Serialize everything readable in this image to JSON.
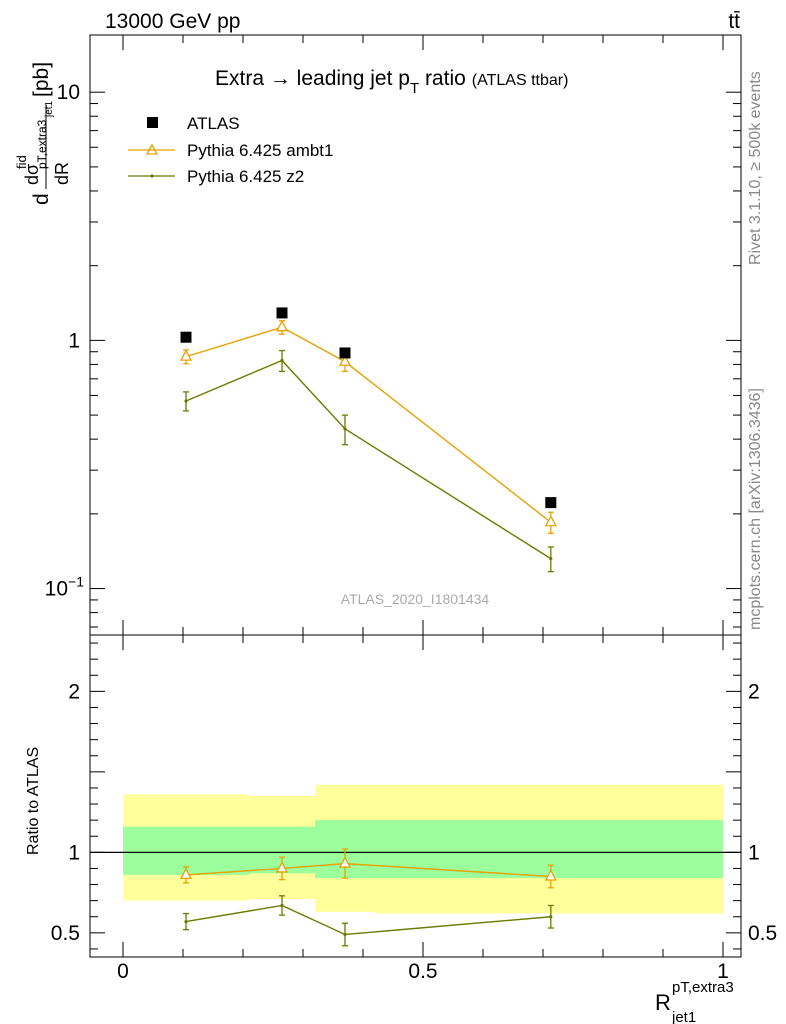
{
  "header": {
    "left": "13000 GeV pp",
    "right": "tt̄"
  },
  "title": {
    "main": "Extra → leading jet p",
    "sub": "T",
    "after": " ratio",
    "small": "(ATLAS ttbar)"
  },
  "side_labels": {
    "rivet": "Rivet 3.1.10, ≥ 500k events",
    "mcplots": "mcplots.cern.ch [arXiv:1306.3436]"
  },
  "analysis_label": "ATLAS_2020_I1801434",
  "y_axis_label": {
    "d": "d",
    "dsigma": "dσ",
    "fid": "fid",
    "psub": "pT,extra3",
    "jetsub": "jet1",
    "dR": "dR",
    "unit": "[pb]"
  },
  "x_axis_label": {
    "R": "R",
    "sup": "pT,extra3",
    "sub": "jet1"
  },
  "ratio_label": "Ratio to ATLAS",
  "legend": [
    {
      "label": "ATLAS"
    },
    {
      "label": "Pythia 6.425 ambt1"
    },
    {
      "label": "Pythia 6.425 z2"
    }
  ],
  "colors": {
    "atlas": "#000000",
    "ambt1": "#e8a000",
    "z2": "#6b7a00",
    "band_inner": "#9cff9c",
    "band_outer": "#ffff9c"
  },
  "chart_data": {
    "type": "scatter",
    "main": {
      "yscale": "log",
      "ylim": [
        0.065,
        17
      ],
      "y_ticks": [
        {
          "value": 0.1,
          "base": "10",
          "exp": "−1"
        },
        {
          "value": 1,
          "label": "1"
        },
        {
          "value": 10,
          "label": "10"
        }
      ],
      "series": [
        {
          "name": "ATLAS",
          "marker": "square",
          "points": [
            {
              "x": 0.105,
              "y": 1.03
            },
            {
              "x": 0.265,
              "y": 1.29
            },
            {
              "x": 0.37,
              "y": 0.89
            },
            {
              "x": 0.713,
              "y": 0.222
            }
          ]
        },
        {
          "name": "Pythia 6.425 ambt1",
          "marker": "triangle",
          "points": [
            {
              "x": 0.105,
              "y": 0.86,
              "err": 0.055
            },
            {
              "x": 0.265,
              "y": 1.13,
              "err": 0.07
            },
            {
              "x": 0.37,
              "y": 0.82,
              "err": 0.07
            },
            {
              "x": 0.713,
              "y": 0.185,
              "err": 0.018
            }
          ]
        },
        {
          "name": "Pythia 6.425 z2",
          "marker": "dot",
          "points": [
            {
              "x": 0.105,
              "y": 0.57,
              "err": 0.05
            },
            {
              "x": 0.265,
              "y": 0.83,
              "err": 0.08
            },
            {
              "x": 0.37,
              "y": 0.44,
              "err": 0.06
            },
            {
              "x": 0.713,
              "y": 0.132,
              "err": 0.015
            }
          ]
        }
      ]
    },
    "ratio": {
      "ylim": [
        0.35,
        2.35
      ],
      "y_ticks": [
        {
          "value": 0.5,
          "label": "0.5"
        },
        {
          "value": 1,
          "label": "1"
        },
        {
          "value": 2,
          "label": "2"
        }
      ],
      "bands": [
        {
          "x": [
            0.0,
            0.21
          ],
          "inner": [
            0.86,
            1.16
          ],
          "outer": [
            0.7,
            1.36
          ]
        },
        {
          "x": [
            0.21,
            0.32
          ],
          "inner": [
            0.87,
            1.16
          ],
          "outer": [
            0.71,
            1.35
          ]
        },
        {
          "x": [
            0.32,
            0.42
          ],
          "inner": [
            0.84,
            1.2
          ],
          "outer": [
            0.63,
            1.42
          ]
        },
        {
          "x": [
            0.42,
            1.0
          ],
          "inner": [
            0.84,
            1.2
          ],
          "outer": [
            0.62,
            1.42
          ]
        }
      ],
      "series": [
        {
          "name": "Pythia 6.425 ambt1",
          "points": [
            {
              "x": 0.105,
              "y": 0.86,
              "err": 0.05
            },
            {
              "x": 0.265,
              "y": 0.9,
              "err": 0.07
            },
            {
              "x": 0.37,
              "y": 0.93,
              "err": 0.09
            },
            {
              "x": 0.713,
              "y": 0.85,
              "err": 0.07
            }
          ]
        },
        {
          "name": "Pythia 6.425 z2",
          "points": [
            {
              "x": 0.105,
              "y": 0.57,
              "err": 0.05
            },
            {
              "x": 0.265,
              "y": 0.67,
              "err": 0.06
            },
            {
              "x": 0.37,
              "y": 0.49,
              "err": 0.07
            },
            {
              "x": 0.713,
              "y": 0.6,
              "err": 0.07
            }
          ]
        }
      ]
    },
    "x": {
      "xlim": [
        -0.055,
        1.03
      ],
      "ticks": [
        {
          "value": 0,
          "label": "0"
        },
        {
          "value": 0.5,
          "label": "0.5"
        },
        {
          "value": 1,
          "label": "1"
        }
      ]
    }
  }
}
